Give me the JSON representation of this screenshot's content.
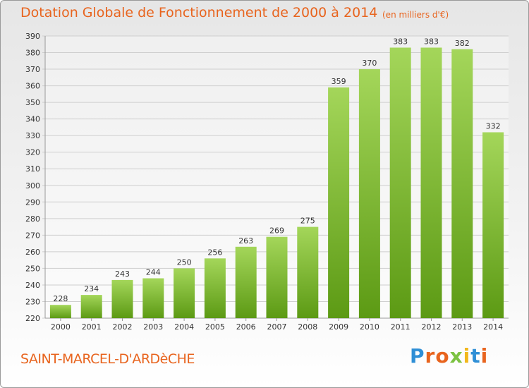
{
  "header": {
    "title": "Dotation Globale de Fonctionnement de 2000 à 2014",
    "subtitle": "(en milliers d'€)"
  },
  "footer": {
    "commune": "SAINT-MARCEL-D'ARDèCHE",
    "logo": "Proxiti"
  },
  "colors": {
    "title": "#e8641e",
    "bar_top": "#a4d65a",
    "bar_bottom": "#5c9a14",
    "grid": "#cfcfcf"
  },
  "chart_data": {
    "type": "bar",
    "title": "Dotation Globale de Fonctionnement de 2000 à 2014",
    "subtitle": "(en milliers d'€)",
    "xlabel": "",
    "ylabel": "",
    "categories": [
      "2000",
      "2001",
      "2002",
      "2003",
      "2004",
      "2005",
      "2006",
      "2007",
      "2008",
      "2009",
      "2010",
      "2011",
      "2012",
      "2013",
      "2014"
    ],
    "values": [
      228,
      234,
      243,
      244,
      250,
      256,
      263,
      269,
      275,
      359,
      370,
      383,
      383,
      382,
      332
    ],
    "ylim": [
      220,
      390
    ],
    "ytick_step": 10,
    "grid": true,
    "legend": "none"
  }
}
